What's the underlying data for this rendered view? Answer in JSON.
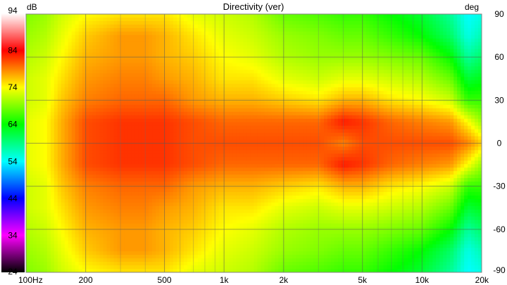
{
  "chart_data": {
    "type": "heatmap",
    "title": "Directivity (ver)",
    "colorbar_unit": "dB",
    "yaxis_unit": "deg",
    "x_scale": "log",
    "xlim": [
      100,
      20000
    ],
    "ylim": [
      -90,
      90
    ],
    "colorbar_range": [
      24,
      94
    ],
    "x_ticks": [
      {
        "value": 100,
        "label": "100Hz"
      },
      {
        "value": 200,
        "label": "200"
      },
      {
        "value": 500,
        "label": "500"
      },
      {
        "value": 1000,
        "label": "1k"
      },
      {
        "value": 2000,
        "label": "2k"
      },
      {
        "value": 5000,
        "label": "5k"
      },
      {
        "value": 10000,
        "label": "10k"
      },
      {
        "value": 20000,
        "label": "20k"
      }
    ],
    "y_ticks": [
      {
        "value": 90,
        "label": "90"
      },
      {
        "value": 60,
        "label": "60"
      },
      {
        "value": 30,
        "label": "30"
      },
      {
        "value": 0,
        "label": "0"
      },
      {
        "value": -30,
        "label": "-30"
      },
      {
        "value": -60,
        "label": "-60"
      },
      {
        "value": -90,
        "label": "-90"
      }
    ],
    "colorbar_ticks": [
      {
        "value": 94,
        "label": "94"
      },
      {
        "value": 84,
        "label": "84"
      },
      {
        "value": 74,
        "label": "74"
      },
      {
        "value": 64,
        "label": "64"
      },
      {
        "value": 54,
        "label": "54"
      },
      {
        "value": 44,
        "label": "44"
      },
      {
        "value": 34,
        "label": "34"
      },
      {
        "value": 24,
        "label": "24"
      }
    ],
    "colorbar_colors": [
      {
        "value": 94,
        "color": "#ffffff"
      },
      {
        "value": 89,
        "color": "#ff8080"
      },
      {
        "value": 84,
        "color": "#ff0000"
      },
      {
        "value": 79,
        "color": "#ff8000"
      },
      {
        "value": 74,
        "color": "#ffff00"
      },
      {
        "value": 69,
        "color": "#80ff00"
      },
      {
        "value": 64,
        "color": "#00ff00"
      },
      {
        "value": 59,
        "color": "#00ff80"
      },
      {
        "value": 54,
        "color": "#00ffff"
      },
      {
        "value": 49,
        "color": "#0080ff"
      },
      {
        "value": 44,
        "color": "#0000ff"
      },
      {
        "value": 39,
        "color": "#8000ff"
      },
      {
        "value": 34,
        "color": "#ff00ff"
      },
      {
        "value": 29,
        "color": "#800080"
      },
      {
        "value": 24,
        "color": "#000000"
      }
    ],
    "angles": [
      -90,
      -75,
      -60,
      -45,
      -30,
      -15,
      0,
      15,
      30,
      45,
      60,
      75,
      90
    ],
    "frequencies": [
      100,
      125,
      150,
      200,
      300,
      400,
      500,
      700,
      1000,
      1400,
      2000,
      3000,
      4000,
      5000,
      7000,
      10000,
      14000,
      17000,
      20000
    ],
    "levels_db": [
      [
        69,
        70,
        72,
        74,
        75,
        75,
        75,
        73,
        72,
        71,
        68,
        67,
        66,
        66,
        64,
        62,
        58,
        54,
        55
      ],
      [
        70,
        71,
        73,
        76,
        78,
        78,
        77,
        75,
        73,
        72,
        70,
        69,
        68,
        68,
        66,
        64,
        60,
        55,
        57
      ],
      [
        71,
        72,
        74,
        77,
        78,
        78,
        77,
        76,
        74,
        73,
        71,
        70,
        70,
        70,
        69,
        68,
        64,
        58,
        60
      ],
      [
        72,
        73,
        75,
        78,
        79,
        79,
        78,
        77,
        75,
        75,
        73,
        72,
        73,
        73,
        72,
        71,
        68,
        62,
        63
      ],
      [
        72,
        73,
        76,
        79,
        80,
        80,
        80,
        78,
        77,
        77,
        76,
        75,
        77,
        77,
        75,
        74,
        72,
        66,
        66
      ],
      [
        73,
        74,
        77,
        81,
        82,
        82,
        82,
        81,
        80,
        80,
        80,
        80,
        83,
        82,
        80,
        79,
        78,
        74,
        70
      ],
      [
        73,
        74,
        77,
        81,
        82,
        82,
        82,
        81,
        81,
        81,
        81,
        81,
        79,
        81,
        81,
        81,
        81,
        79,
        76
      ],
      [
        73,
        74,
        77,
        81,
        82,
        82,
        82,
        81,
        80,
        80,
        80,
        80,
        83,
        82,
        80,
        79,
        78,
        74,
        70
      ],
      [
        72,
        73,
        76,
        79,
        80,
        80,
        80,
        78,
        77,
        77,
        76,
        75,
        77,
        77,
        75,
        74,
        72,
        66,
        66
      ],
      [
        72,
        73,
        75,
        78,
        79,
        79,
        78,
        77,
        75,
        75,
        73,
        72,
        73,
        73,
        72,
        71,
        68,
        62,
        63
      ],
      [
        71,
        72,
        74,
        77,
        78,
        78,
        77,
        76,
        74,
        73,
        71,
        70,
        70,
        70,
        69,
        68,
        64,
        58,
        60
      ],
      [
        70,
        71,
        73,
        76,
        78,
        78,
        77,
        75,
        73,
        72,
        70,
        69,
        68,
        68,
        66,
        64,
        60,
        55,
        57
      ],
      [
        69,
        70,
        72,
        74,
        75,
        75,
        75,
        73,
        72,
        71,
        68,
        67,
        66,
        66,
        64,
        62,
        58,
        54,
        55
      ]
    ],
    "grid": true,
    "legend": "colorbar-left"
  }
}
